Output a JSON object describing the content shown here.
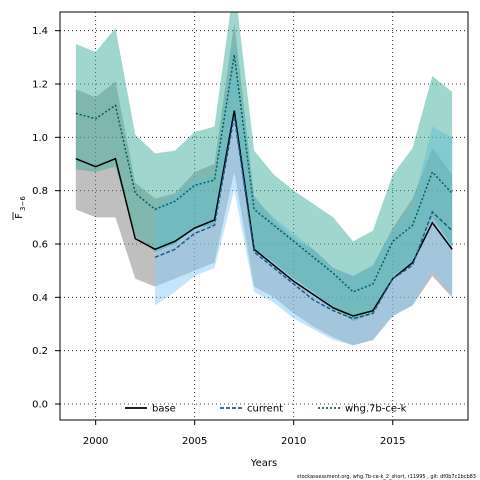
{
  "chart_data": {
    "type": "line",
    "xlabel": "Years",
    "ylabel_main": "F",
    "ylabel_sub": "3−6",
    "xlim": [
      1998.2,
      2018.8
    ],
    "ylim": [
      -0.06,
      1.47
    ],
    "xticks": [
      2000,
      2005,
      2010,
      2015
    ],
    "yticks": [
      0.0,
      0.2,
      0.4,
      0.6,
      0.8,
      1.0,
      1.2,
      1.4
    ],
    "grid": true,
    "legend_position": "bottom",
    "caption": "stockassessment.org, whg.7b-ce-k_2_short, r11995 , git: df0b7c1bcb83",
    "series": [
      {
        "name": "base",
        "color": "#000000",
        "dash": "solid",
        "ci_color": "#808080",
        "x": [
          1999,
          2000,
          2001,
          2002,
          2003,
          2004,
          2005,
          2006,
          2007,
          2008,
          2009,
          2010,
          2011,
          2012,
          2013,
          2014,
          2015,
          2016,
          2017,
          2018
        ],
        "mid": [
          0.92,
          0.89,
          0.92,
          0.62,
          0.58,
          0.61,
          0.66,
          0.69,
          1.1,
          0.58,
          0.52,
          0.46,
          0.41,
          0.36,
          0.33,
          0.35,
          0.47,
          0.53,
          0.68,
          0.58
        ],
        "low": [
          0.73,
          0.7,
          0.7,
          0.47,
          0.44,
          0.47,
          0.5,
          0.53,
          0.87,
          0.44,
          0.4,
          0.34,
          0.29,
          0.25,
          0.22,
          0.24,
          0.33,
          0.37,
          0.48,
          0.4
        ],
        "high": [
          1.18,
          1.15,
          1.21,
          0.83,
          0.77,
          0.79,
          0.87,
          0.9,
          1.43,
          0.78,
          0.69,
          0.62,
          0.58,
          0.51,
          0.48,
          0.52,
          0.66,
          0.77,
          0.96,
          0.86
        ]
      },
      {
        "name": "current",
        "color": "#1a5a8a",
        "dash": "dashed",
        "ci_color": "#87cefa",
        "x": [
          2003,
          2004,
          2005,
          2006,
          2007,
          2008,
          2009,
          2010,
          2011,
          2012,
          2013,
          2014,
          2015,
          2016,
          2017,
          2018
        ],
        "mid": [
          0.55,
          0.58,
          0.64,
          0.67,
          1.08,
          0.57,
          0.51,
          0.45,
          0.39,
          0.35,
          0.32,
          0.34,
          0.47,
          0.52,
          0.72,
          0.65
        ],
        "low": [
          0.37,
          0.42,
          0.48,
          0.51,
          0.8,
          0.42,
          0.38,
          0.32,
          0.28,
          0.24,
          0.22,
          0.24,
          0.33,
          0.37,
          0.5,
          0.41
        ],
        "high": [
          0.74,
          0.78,
          0.84,
          0.86,
          1.37,
          0.77,
          0.7,
          0.64,
          0.58,
          0.51,
          0.48,
          0.52,
          0.65,
          0.74,
          1.04,
          1.0
        ]
      },
      {
        "name": "whg.7b-ce-k",
        "color": "#005f5a",
        "dash": "dotted",
        "ci_color": "#40b0a0",
        "x": [
          1999,
          2000,
          2001,
          2002,
          2003,
          2004,
          2005,
          2006,
          2007,
          2008,
          2009,
          2010,
          2011,
          2012,
          2013,
          2014,
          2015,
          2016,
          2017,
          2018
        ],
        "mid": [
          1.09,
          1.07,
          1.12,
          0.79,
          0.73,
          0.76,
          0.82,
          0.84,
          1.31,
          0.73,
          0.67,
          0.61,
          0.55,
          0.49,
          0.42,
          0.45,
          0.61,
          0.67,
          0.87,
          0.79
        ],
        "low": [
          0.88,
          0.87,
          0.89,
          0.63,
          0.57,
          0.6,
          0.66,
          0.67,
          1.08,
          0.58,
          0.53,
          0.47,
          0.42,
          0.36,
          0.31,
          0.34,
          0.48,
          0.53,
          0.7,
          0.59
        ],
        "high": [
          1.35,
          1.32,
          1.41,
          1.01,
          0.94,
          0.95,
          1.02,
          1.04,
          1.58,
          0.95,
          0.86,
          0.8,
          0.75,
          0.7,
          0.61,
          0.65,
          0.86,
          0.96,
          1.23,
          1.17
        ]
      }
    ]
  }
}
